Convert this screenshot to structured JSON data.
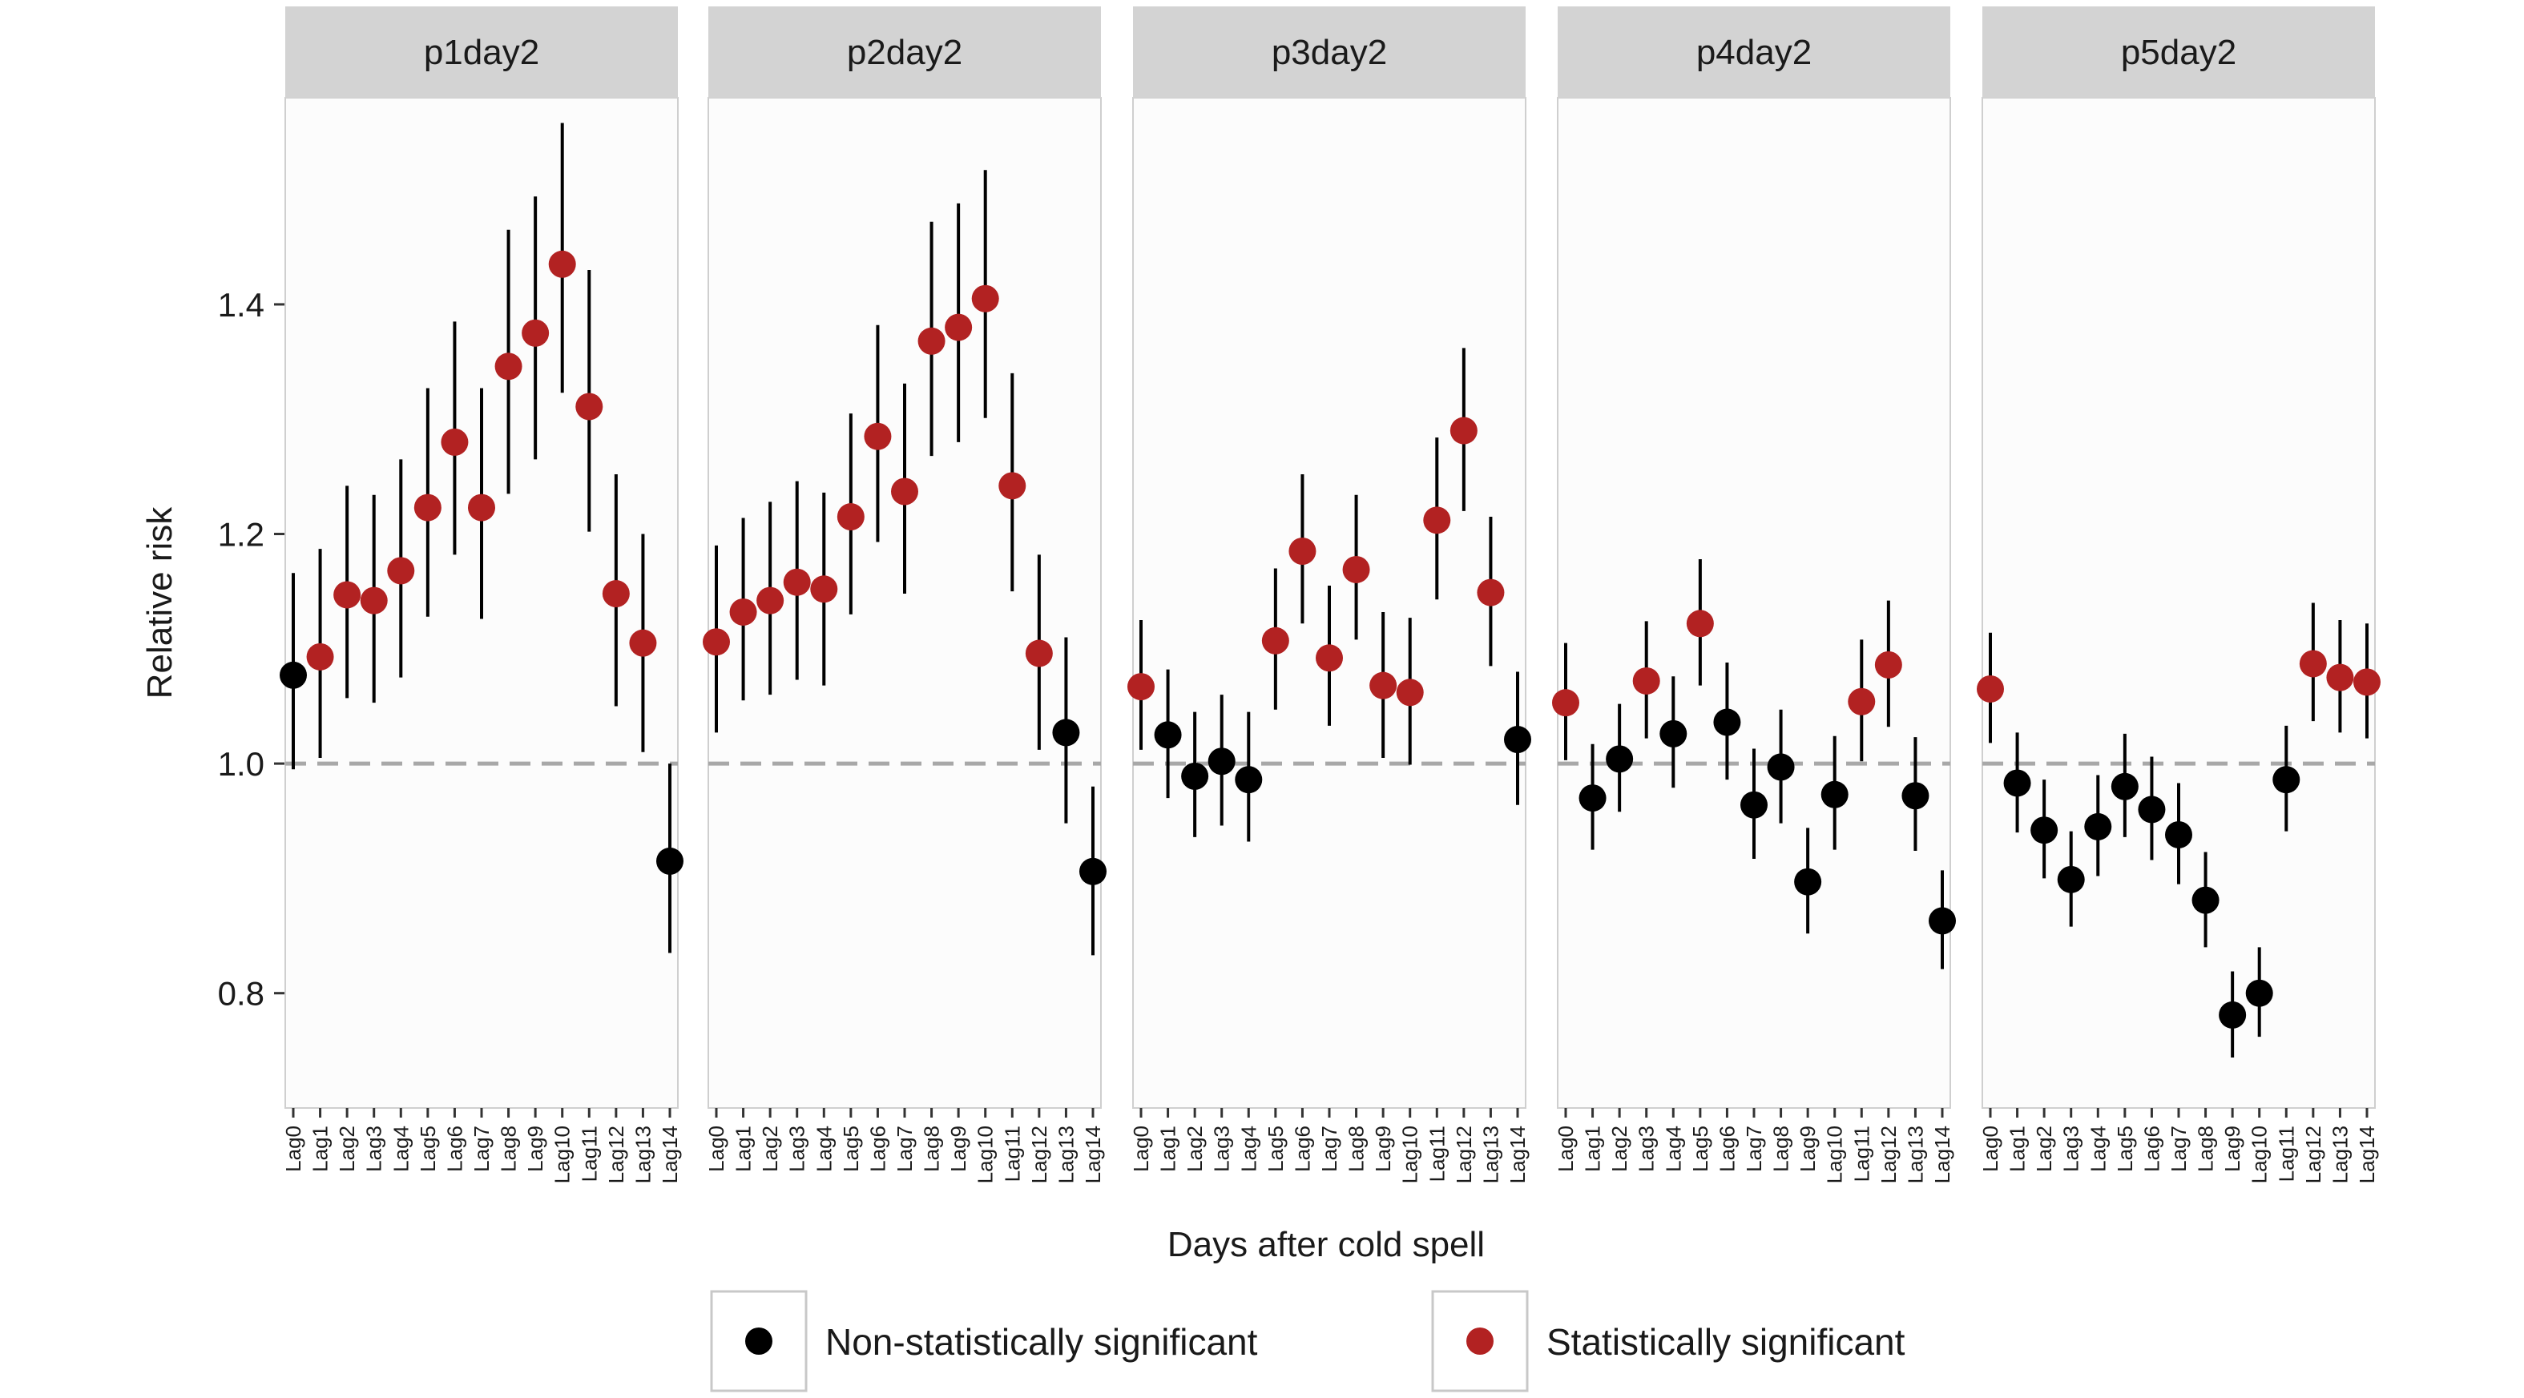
{
  "chart_data": {
    "type": "scatter",
    "subtype": "point-range",
    "xlabel": "Days after cold spell",
    "ylabel": "Relative risk",
    "ylim": [
      0.7,
      1.58
    ],
    "yticks": [
      0.8,
      1.0,
      1.2,
      1.4
    ],
    "reference_line": 1.0,
    "categories": [
      "Lag0",
      "Lag1",
      "Lag2",
      "Lag3",
      "Lag4",
      "Lag5",
      "Lag6",
      "Lag7",
      "Lag8",
      "Lag9",
      "Lag10",
      "Lag11",
      "Lag12",
      "Lag13",
      "Lag14"
    ],
    "legend": {
      "position": "bottom",
      "items": [
        {
          "label": "Non-statistically significant",
          "color": "#000000"
        },
        {
          "label": "Statistically significant",
          "color": "#b22222"
        }
      ]
    },
    "panels": [
      {
        "title": "p1day2",
        "estimate": [
          1.077,
          1.093,
          1.147,
          1.142,
          1.168,
          1.223,
          1.28,
          1.223,
          1.346,
          1.375,
          1.435,
          1.311,
          1.148,
          1.105,
          0.915
        ],
        "lower": [
          0.995,
          1.005,
          1.057,
          1.053,
          1.075,
          1.128,
          1.182,
          1.126,
          1.235,
          1.265,
          1.323,
          1.202,
          1.05,
          1.01,
          0.835
        ],
        "upper": [
          1.166,
          1.187,
          1.242,
          1.234,
          1.265,
          1.327,
          1.385,
          1.327,
          1.465,
          1.494,
          1.558,
          1.43,
          1.252,
          1.2,
          1.0
        ],
        "significant": [
          false,
          true,
          true,
          true,
          true,
          true,
          true,
          true,
          true,
          true,
          true,
          true,
          true,
          true,
          false
        ]
      },
      {
        "title": "p2day2",
        "estimate": [
          1.106,
          1.132,
          1.142,
          1.158,
          1.152,
          1.215,
          1.285,
          1.237,
          1.368,
          1.38,
          1.405,
          1.242,
          1.096,
          1.027,
          0.906
        ],
        "lower": [
          1.027,
          1.055,
          1.06,
          1.073,
          1.068,
          1.13,
          1.193,
          1.148,
          1.268,
          1.28,
          1.301,
          1.15,
          1.012,
          0.948,
          0.833
        ],
        "upper": [
          1.19,
          1.214,
          1.228,
          1.246,
          1.236,
          1.305,
          1.382,
          1.331,
          1.472,
          1.488,
          1.517,
          1.34,
          1.182,
          1.11,
          0.98
        ],
        "significant": [
          true,
          true,
          true,
          true,
          true,
          true,
          true,
          true,
          true,
          true,
          true,
          true,
          true,
          false,
          false
        ]
      },
      {
        "title": "p3day2",
        "estimate": [
          1.067,
          1.025,
          0.989,
          1.002,
          0.986,
          1.107,
          1.185,
          1.092,
          1.169,
          1.068,
          1.062,
          1.212,
          1.29,
          1.149,
          1.021
        ],
        "lower": [
          1.012,
          0.97,
          0.936,
          0.946,
          0.932,
          1.047,
          1.122,
          1.033,
          1.108,
          1.005,
          0.999,
          1.143,
          1.22,
          1.085,
          0.964
        ],
        "upper": [
          1.125,
          1.082,
          1.045,
          1.06,
          1.045,
          1.17,
          1.252,
          1.155,
          1.234,
          1.132,
          1.127,
          1.284,
          1.362,
          1.215,
          1.08
        ],
        "significant": [
          true,
          false,
          false,
          false,
          false,
          true,
          true,
          true,
          true,
          true,
          true,
          true,
          true,
          true,
          false
        ]
      },
      {
        "title": "p4day2",
        "estimate": [
          1.053,
          0.97,
          1.004,
          1.072,
          1.026,
          1.122,
          1.036,
          0.964,
          0.997,
          0.897,
          0.973,
          1.054,
          1.086,
          0.972,
          0.863
        ],
        "lower": [
          1.003,
          0.925,
          0.958,
          1.022,
          0.979,
          1.068,
          0.986,
          0.917,
          0.948,
          0.852,
          0.925,
          1.002,
          1.032,
          0.924,
          0.821
        ],
        "upper": [
          1.105,
          1.017,
          1.052,
          1.124,
          1.076,
          1.178,
          1.088,
          1.013,
          1.047,
          0.944,
          1.024,
          1.108,
          1.142,
          1.023,
          0.907
        ],
        "significant": [
          true,
          false,
          false,
          true,
          false,
          true,
          false,
          false,
          false,
          false,
          false,
          true,
          true,
          false,
          false
        ]
      },
      {
        "title": "p5day2",
        "estimate": [
          1.065,
          0.983,
          0.942,
          0.899,
          0.945,
          0.98,
          0.96,
          0.938,
          0.881,
          0.781,
          0.8,
          0.986,
          1.087,
          1.075,
          1.071
        ],
        "lower": [
          1.018,
          0.94,
          0.9,
          0.858,
          0.902,
          0.936,
          0.916,
          0.895,
          0.84,
          0.744,
          0.762,
          0.941,
          1.037,
          1.027,
          1.022
        ],
        "upper": [
          1.114,
          1.027,
          0.986,
          0.941,
          0.99,
          1.026,
          1.006,
          0.983,
          0.923,
          0.819,
          0.84,
          1.033,
          1.14,
          1.125,
          1.122
        ],
        "significant": [
          true,
          false,
          false,
          false,
          false,
          false,
          false,
          false,
          false,
          false,
          false,
          false,
          true,
          true,
          true
        ]
      }
    ]
  }
}
